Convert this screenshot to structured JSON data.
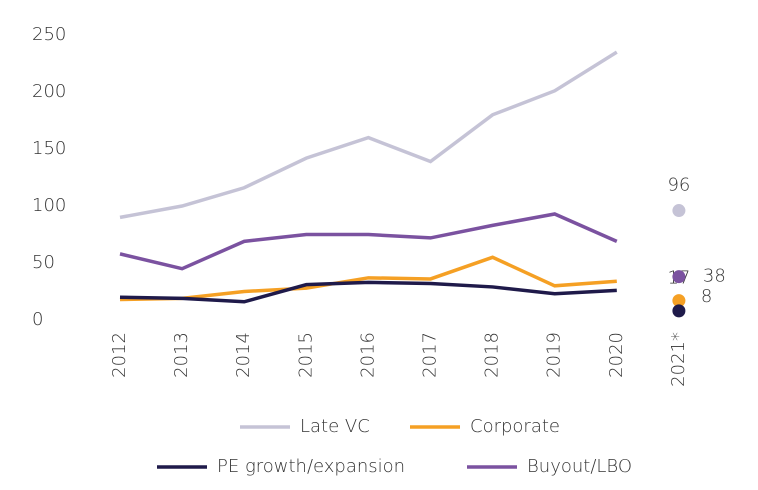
{
  "chart_data": {
    "type": "line",
    "categories": [
      "2012",
      "2013",
      "2014",
      "2015",
      "2016",
      "2017",
      "2018",
      "2019",
      "2020",
      "2021*"
    ],
    "series": [
      {
        "name": "Late VC",
        "color": "#c5c3d6",
        "values": [
          90,
          100,
          116,
          142,
          160,
          139,
          180,
          201,
          235,
          96
        ]
      },
      {
        "name": "Corporate",
        "color": "#f5a024",
        "values": [
          18,
          19,
          25,
          28,
          37,
          36,
          55,
          30,
          34,
          17
        ]
      },
      {
        "name": "PE growth/expansion",
        "color": "#1f1a4a",
        "values": [
          20,
          19,
          16,
          31,
          33,
          32,
          29,
          23,
          26,
          8
        ]
      },
      {
        "name": "Buyout/LBO",
        "color": "#7b52a0",
        "values": [
          58,
          45,
          69,
          75,
          75,
          72,
          83,
          93,
          69,
          38
        ]
      }
    ],
    "ylim": [
      0,
      250
    ],
    "yticks": [
      0,
      50,
      100,
      150,
      200,
      250
    ],
    "grid": false,
    "legend": "bottom"
  }
}
